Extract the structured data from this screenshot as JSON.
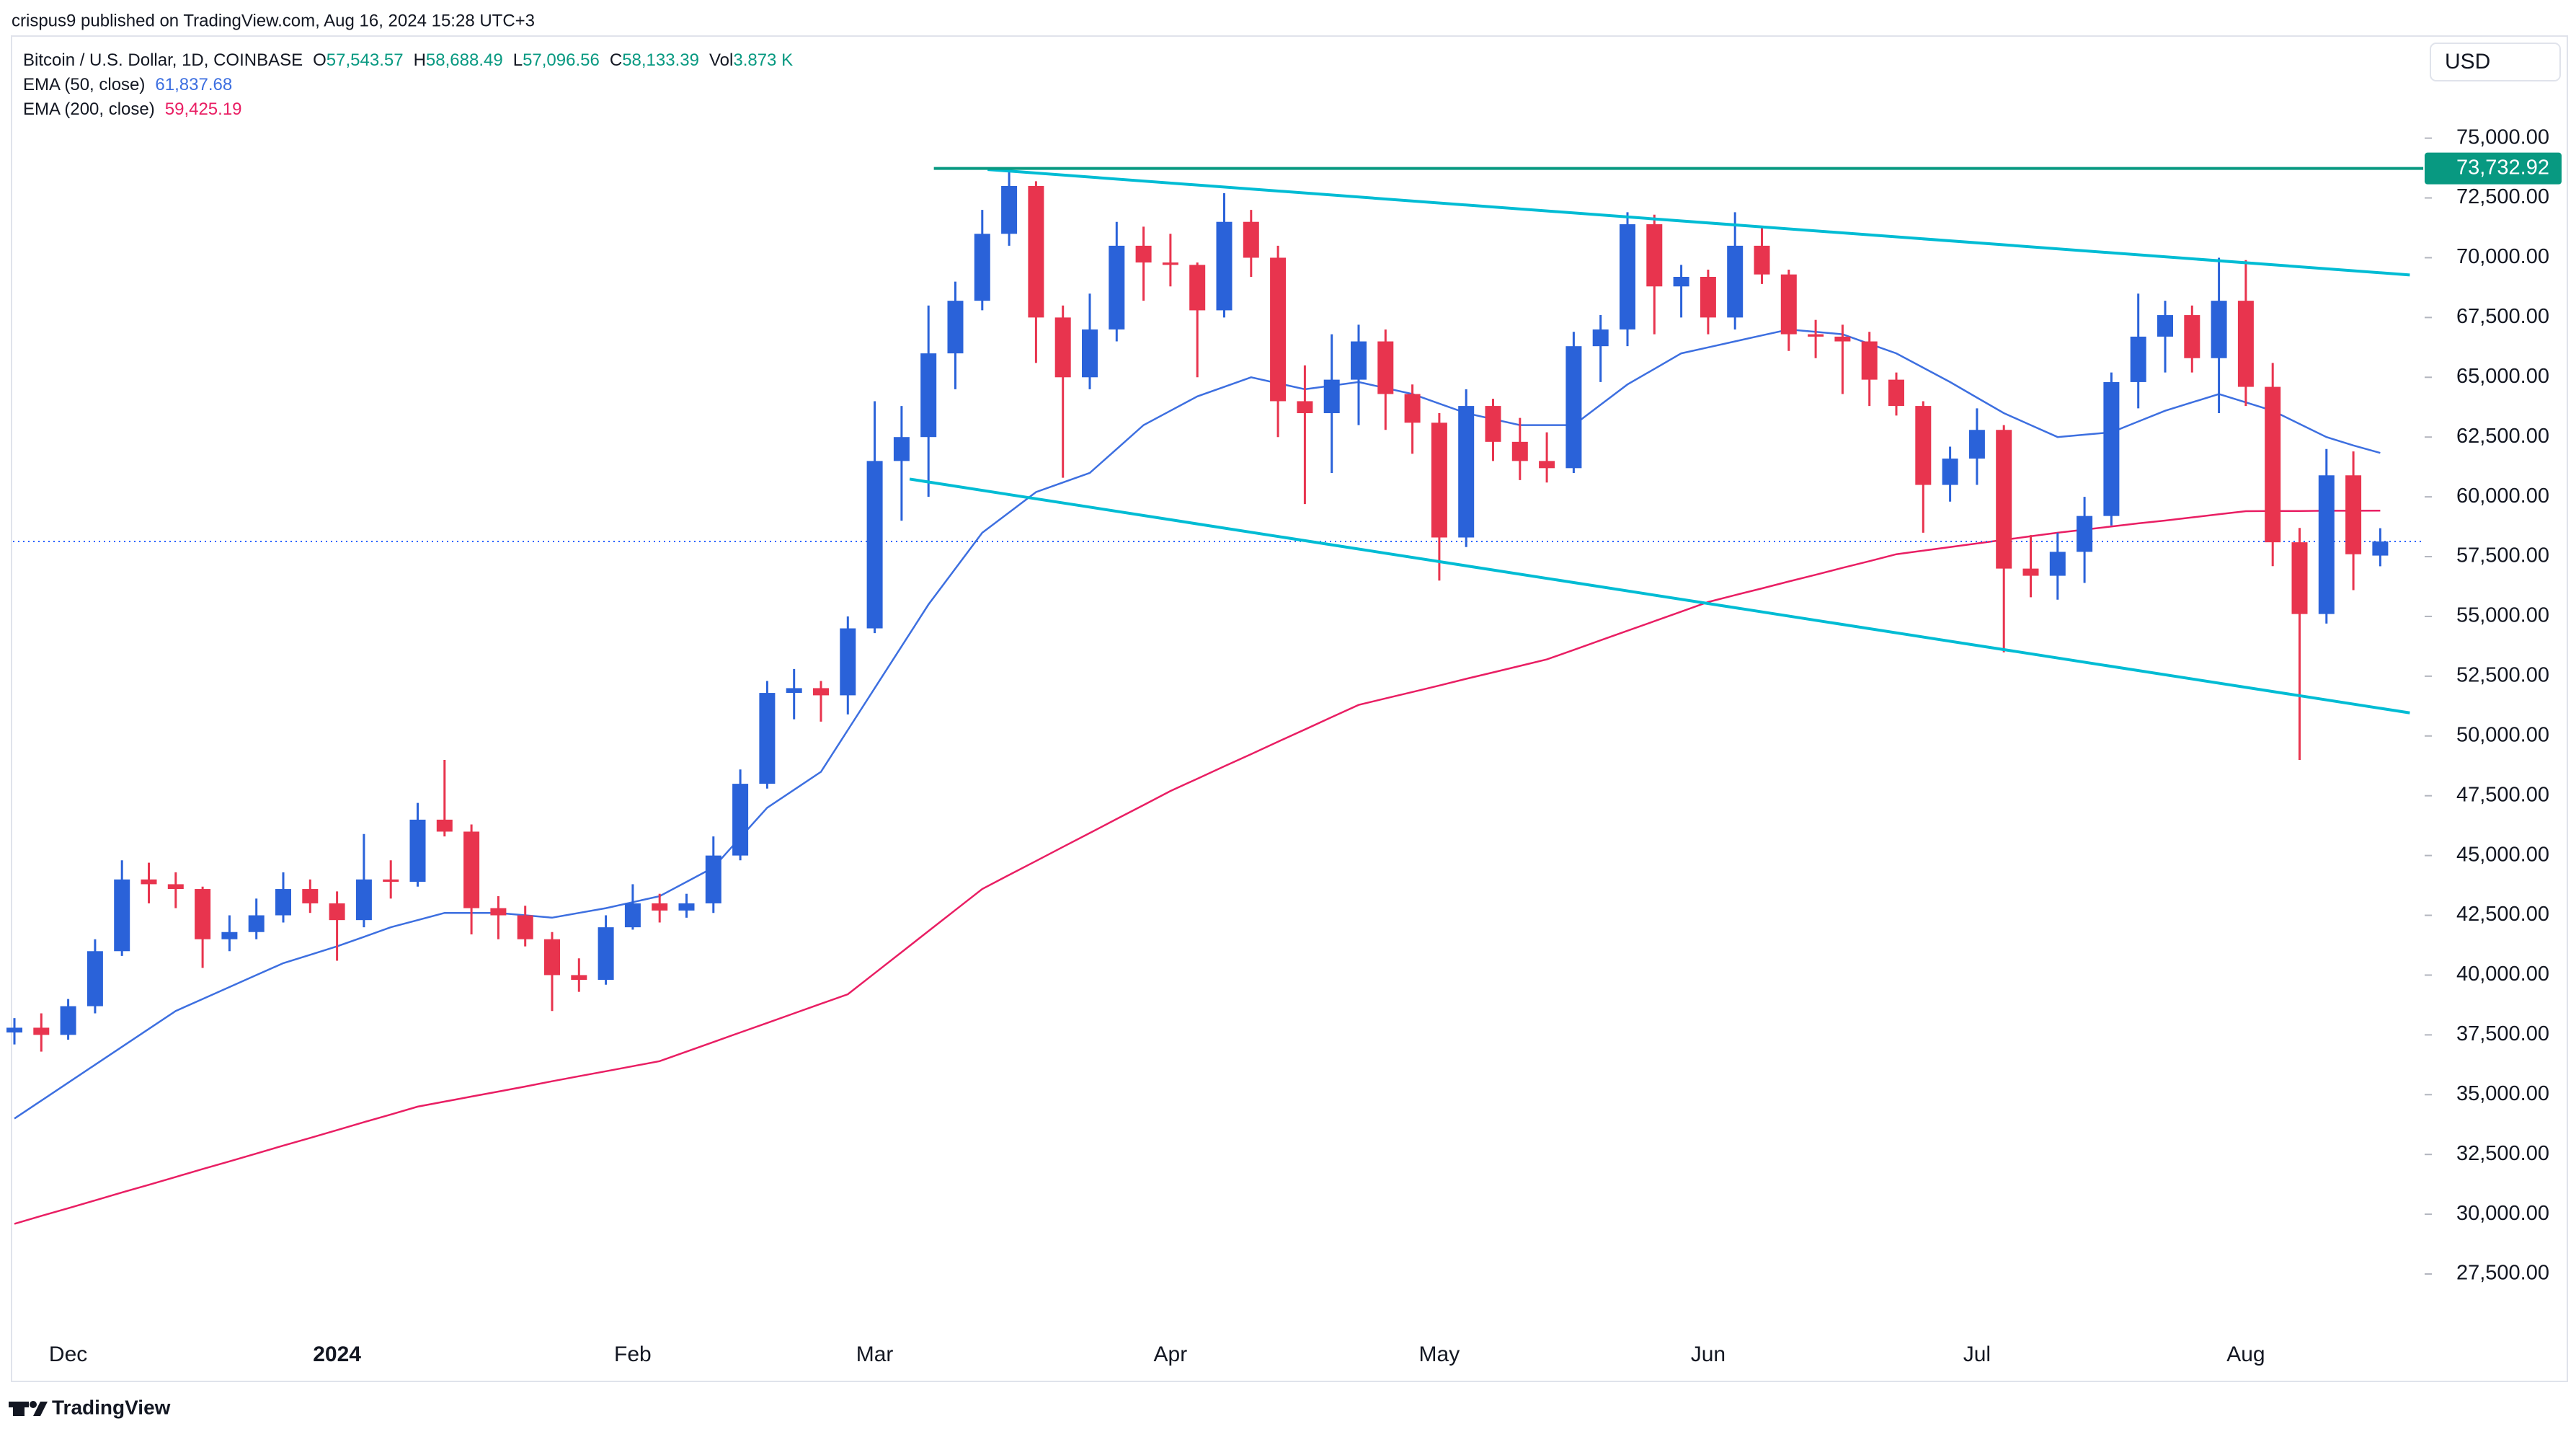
{
  "header": {
    "publisher": "crispus9 published on TradingView.com, Aug 16, 2024 15:28 UTC+3"
  },
  "footer": {
    "brand": "TradingView"
  },
  "chart_data": {
    "type": "candlestick",
    "title": "Bitcoin / U.S. Dollar, 1D, COINBASE",
    "ohlc": [
      {
        "key": "O",
        "value": "57,543.57"
      },
      {
        "key": "H",
        "value": "58,688.49"
      },
      {
        "key": "L",
        "value": "57,096.56"
      },
      {
        "key": "C",
        "value": "58,133.39"
      },
      {
        "key": "Vol",
        "value": "3.873 K"
      }
    ],
    "currency": "USD",
    "up_color": "#2a62d9",
    "down_color": "#e8344e",
    "categories": [
      null,
      null,
      "Dec",
      null,
      null,
      null,
      null,
      null,
      null,
      null,
      null,
      null,
      "2024",
      null,
      null,
      null,
      null,
      null,
      null,
      null,
      null,
      null,
      null,
      "Feb",
      null,
      null,
      null,
      null,
      null,
      null,
      null,
      null,
      "Mar",
      null,
      null,
      null,
      null,
      null,
      null,
      null,
      null,
      null,
      null,
      "Apr",
      null,
      null,
      null,
      null,
      null,
      null,
      null,
      null,
      null,
      "May",
      null,
      null,
      null,
      null,
      null,
      null,
      null,
      null,
      null,
      "Jun",
      null,
      null,
      null,
      null,
      null,
      null,
      null,
      null,
      null,
      "Jul",
      null,
      null,
      null,
      null,
      null,
      null,
      null,
      null,
      null,
      "Aug",
      null,
      null,
      null,
      null,
      null
    ],
    "open": [
      37600,
      37800,
      37500,
      38700,
      41000,
      44000,
      43800,
      43600,
      41500,
      41800,
      42500,
      43600,
      43000,
      42300,
      44000,
      43900,
      46500,
      46000,
      42800,
      42500,
      41500,
      40000,
      39800,
      42000,
      43000,
      42700,
      43000,
      45000,
      48000,
      51800,
      52000,
      51700,
      54500,
      61500,
      62500,
      66000,
      68200,
      71000,
      73000,
      67500,
      65000,
      67000,
      70500,
      69800,
      69700,
      67800,
      71500,
      70000,
      64000,
      63500,
      64900,
      66500,
      64300,
      63100,
      58300,
      63800,
      62300,
      61500,
      61200,
      66300,
      67000,
      71400,
      68800,
      69200,
      67500,
      70500,
      69300,
      66800,
      66700,
      66500,
      64900,
      63800,
      60500,
      61600,
      62800,
      57000,
      56700,
      57700,
      59200,
      64800,
      66700,
      67600,
      65800,
      68200,
      64600,
      58100,
      55100,
      60900,
      57543.57
    ],
    "high": [
      38200,
      38400,
      39000,
      41500,
      44800,
      44700,
      44300,
      43700,
      42500,
      43200,
      44300,
      44000,
      43500,
      45900,
      44800,
      47200,
      49000,
      46300,
      43300,
      42900,
      41800,
      40700,
      42500,
      43800,
      43400,
      43400,
      45800,
      48600,
      52300,
      52800,
      52300,
      55000,
      64000,
      63800,
      68000,
      69000,
      72000,
      73750,
      73200,
      68000,
      68500,
      71500,
      71300,
      71000,
      69800,
      72700,
      72000,
      70500,
      65500,
      66800,
      67200,
      67000,
      64700,
      63500,
      64500,
      64100,
      63300,
      62700,
      66900,
      67600,
      71900,
      71800,
      69700,
      69500,
      71900,
      71300,
      69500,
      67400,
      67200,
      66900,
      65200,
      64000,
      62100,
      63700,
      63000,
      58400,
      58500,
      60000,
      65200,
      68500,
      68200,
      68000,
      70000,
      69900,
      65600,
      58700,
      62000,
      61900,
      58688.49
    ],
    "low": [
      37100,
      36800,
      37300,
      38400,
      40800,
      43000,
      42800,
      40300,
      41000,
      41500,
      42200,
      42600,
      40600,
      42000,
      43200,
      43700,
      45800,
      41700,
      41500,
      41200,
      38500,
      39300,
      39600,
      41900,
      42200,
      42400,
      42600,
      44800,
      47800,
      50700,
      50600,
      50900,
      54300,
      59000,
      60000,
      64500,
      67800,
      70500,
      65600,
      60800,
      64500,
      66500,
      68200,
      68800,
      65000,
      67500,
      69200,
      62500,
      59700,
      61000,
      63000,
      62800,
      61800,
      56500,
      57900,
      61500,
      60700,
      60600,
      61000,
      64800,
      66300,
      66800,
      67500,
      66800,
      67000,
      68900,
      66100,
      65800,
      64300,
      63800,
      63400,
      58500,
      59800,
      60500,
      53500,
      55800,
      55700,
      56400,
      58800,
      63700,
      65200,
      65200,
      63500,
      63800,
      57100,
      49000,
      54700,
      56100,
      57096.56
    ],
    "close": [
      37800,
      37500,
      38700,
      41000,
      44000,
      43800,
      43600,
      41500,
      41800,
      42500,
      43600,
      43000,
      42300,
      44000,
      43900,
      46500,
      46000,
      42800,
      42500,
      41500,
      40000,
      39800,
      42000,
      43000,
      42700,
      43000,
      45000,
      48000,
      51800,
      52000,
      51700,
      54500,
      61500,
      62500,
      66000,
      68200,
      71000,
      73000,
      67500,
      65000,
      67000,
      70500,
      69800,
      69700,
      67800,
      71500,
      70000,
      64000,
      63500,
      64900,
      66500,
      64300,
      63100,
      58300,
      63800,
      62300,
      61500,
      61200,
      66300,
      67000,
      71400,
      68800,
      69200,
      67500,
      70500,
      69300,
      66800,
      66700,
      66500,
      64900,
      63800,
      60500,
      61600,
      62800,
      57000,
      56700,
      57700,
      59200,
      64800,
      66700,
      67600,
      65800,
      68200,
      64600,
      58100,
      55100,
      60900,
      57600,
      58133.39
    ],
    "series": [
      {
        "name": "EMA (50, close)",
        "legend_value": "61,837.68",
        "color": "#3d6fe0",
        "values": [
          34000,
          34750,
          35500,
          36250,
          37000,
          37750,
          38500,
          39000,
          39500,
          40000,
          40500,
          40850,
          41200,
          41600,
          42000,
          42300,
          42600,
          42600,
          42600,
          42500,
          42400,
          42600,
          42800,
          43050,
          43300,
          43900,
          44500,
          45750,
          47000,
          47750,
          48500,
          50250,
          52000,
          53750,
          55500,
          57000,
          58500,
          59350,
          60200,
          60600,
          61000,
          62000,
          63000,
          63600,
          64200,
          64600,
          65000,
          64750,
          64500,
          64650,
          64800,
          64550,
          64300,
          63900,
          63500,
          63250,
          63000,
          63000,
          63000,
          63850,
          64700,
          65350,
          66000,
          66250,
          66500,
          66750,
          67000,
          66900,
          66800,
          66400,
          66000,
          65400,
          64800,
          64150,
          63500,
          63000,
          62500,
          62600,
          62700,
          63150,
          63600,
          63950,
          64300,
          63950,
          63600,
          63050,
          62500,
          62150,
          61837.68
        ]
      },
      {
        "name": "EMA (200, close)",
        "legend_value": "59,425.19",
        "color": "#e91e63",
        "values": [
          29600,
          29930,
          30250,
          30580,
          30910,
          31230,
          31560,
          31890,
          32210,
          32540,
          32870,
          33190,
          33520,
          33850,
          34170,
          34500,
          34710,
          34920,
          35130,
          35340,
          35560,
          35770,
          35980,
          36190,
          36400,
          36800,
          37200,
          37600,
          38000,
          38400,
          38800,
          39200,
          40080,
          40960,
          41840,
          42720,
          43600,
          44190,
          44770,
          45360,
          45940,
          46530,
          47110,
          47700,
          48210,
          48730,
          49240,
          49760,
          50270,
          50790,
          51300,
          51570,
          51840,
          52110,
          52390,
          52660,
          52930,
          53200,
          53600,
          54000,
          54400,
          54800,
          55200,
          55600,
          55890,
          56170,
          56460,
          56740,
          57030,
          57310,
          57600,
          57750,
          57900,
          58050,
          58200,
          58350,
          58500,
          58630,
          58760,
          58890,
          59010,
          59140,
          59270,
          59400,
          59410,
          59410,
          59420,
          59420,
          59425.19
        ]
      }
    ],
    "trendlines": [
      {
        "color": "#00bcd4",
        "x": [
          36.2,
          89.1
        ],
        "y": [
          73690,
          69280
        ]
      },
      {
        "color": "#00bcd4",
        "x": [
          33.3,
          89.1
        ],
        "y": [
          60744,
          50965
        ]
      }
    ],
    "level": {
      "value": 73732.92,
      "label": "73,732.92",
      "color": "#089981",
      "x": [
        34.2,
        89.6
      ]
    },
    "ylim": [
      25360,
      79270
    ],
    "yticks": [
      {
        "value": 27500,
        "label": "27,500.00"
      },
      {
        "value": 30000,
        "label": "30,000.00"
      },
      {
        "value": 32500,
        "label": "32,500.00"
      },
      {
        "value": 35000,
        "label": "35,000.00"
      },
      {
        "value": 37500,
        "label": "37,500.00"
      },
      {
        "value": 40000,
        "label": "40,000.00"
      },
      {
        "value": 42500,
        "label": "42,500.00"
      },
      {
        "value": 45000,
        "label": "45,000.00"
      },
      {
        "value": 47500,
        "label": "47,500.00"
      },
      {
        "value": 50000,
        "label": "50,000.00"
      },
      {
        "value": 52500,
        "label": "52,500.00"
      },
      {
        "value": 55000,
        "label": "55,000.00"
      },
      {
        "value": 57500,
        "label": "57,500.00"
      },
      {
        "value": 60000,
        "label": "60,000.00"
      },
      {
        "value": 62500,
        "label": "62,500.00"
      },
      {
        "value": 65000,
        "label": "65,000.00"
      },
      {
        "value": 67500,
        "label": "67,500.00"
      },
      {
        "value": 70000,
        "label": "70,000.00"
      },
      {
        "value": 72500,
        "label": "72,500.00"
      },
      {
        "value": 75000,
        "label": "75,000.00"
      }
    ]
  }
}
